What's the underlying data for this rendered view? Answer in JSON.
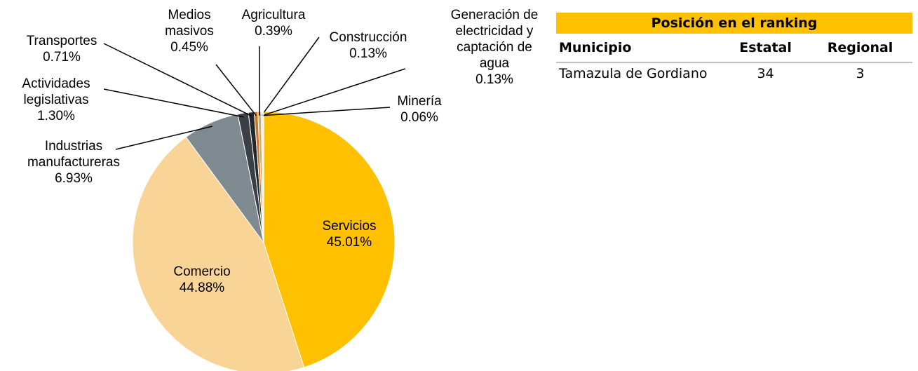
{
  "chart_data": {
    "type": "pie",
    "categories": [
      "Servicios",
      "Comercio",
      "Industrias manufactureras",
      "Actividades legislativas",
      "Transportes",
      "Medios masivos",
      "Agricultura",
      "Construcción",
      "Generación de electricidad y captación de agua",
      "Minería"
    ],
    "values": [
      45.01,
      44.88,
      6.93,
      1.3,
      0.71,
      0.45,
      0.39,
      0.13,
      0.13,
      0.06
    ],
    "value_labels": [
      "45.01%",
      "44.88%",
      "6.93%",
      "1.30%",
      "0.71%",
      "0.45%",
      "0.39%",
      "0.13%",
      "0.13%",
      "0.06%"
    ],
    "colors": [
      "#ffc000",
      "#f9d497",
      "#7f8a90",
      "#3b4045",
      "#23282c",
      "#c8782a",
      "#e3a45a",
      "#b0b0b0",
      "#d9d9d9",
      "#9a9a9a"
    ]
  },
  "table": {
    "title": "Posición en el ranking",
    "columns": [
      "Municipio",
      "Estatal",
      "Regional"
    ],
    "rows": [
      [
        "Tamazula de Gordiano",
        "34",
        "3"
      ]
    ]
  }
}
